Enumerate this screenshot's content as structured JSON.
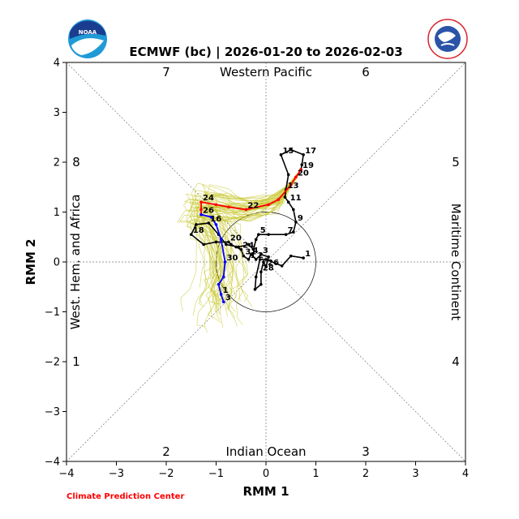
{
  "chart_data": {
    "type": "line",
    "title": "ECMWF (bc) | 2026-01-20 to 2026-02-03",
    "xlabel": "RMM 1",
    "ylabel": "RMM 2",
    "xlim": [
      -4,
      4
    ],
    "ylim": [
      -4,
      4
    ],
    "xticks": [
      "−4",
      "−3",
      "−2",
      "−1",
      "0",
      "1",
      "2",
      "3",
      "4"
    ],
    "yticks": [
      "−4",
      "−3",
      "−2",
      "−1",
      "0",
      "1",
      "2",
      "3",
      "4"
    ],
    "phase_numbers": [
      "1",
      "2",
      "3",
      "4",
      "5",
      "6",
      "7",
      "8"
    ],
    "region_labels": {
      "top": "Western Pacific",
      "bottom": "Indian Ocean",
      "left": "West. Hem. and Africa",
      "right": "Maritime Continent"
    },
    "credit": "Climate Prediction Center",
    "colors": {
      "observed": "#000000",
      "forecast_early": "#ff0000",
      "forecast_late": "#0000ff",
      "ensemble": "#c8c832",
      "credit": "#ff0000"
    },
    "series": [
      {
        "color": "#000000",
        "points": [
          {
            "x": 0.75,
            "y": 0.08,
            "label": "1"
          },
          {
            "x": 0.5,
            "y": 0.12,
            "label": ""
          },
          {
            "x": 0.32,
            "y": -0.08,
            "label": ""
          },
          {
            "x": 0.0,
            "y": 0.05,
            "label": ""
          },
          {
            "x": -0.12,
            "y": 0.05,
            "label": ""
          },
          {
            "x": -0.2,
            "y": -0.3,
            "label": ""
          },
          {
            "x": -0.22,
            "y": -0.55,
            "label": ""
          },
          {
            "x": -0.1,
            "y": -0.45,
            "label": ""
          },
          {
            "x": -0.1,
            "y": -0.2,
            "label": "28"
          },
          {
            "x": -0.05,
            "y": 0.0,
            "label": ""
          },
          {
            "x": 0.0,
            "y": -0.1,
            "label": "26"
          },
          {
            "x": 0.05,
            "y": 0.1,
            "label": ""
          },
          {
            "x": -0.1,
            "y": 0.15,
            "label": "3"
          },
          {
            "x": -0.2,
            "y": 0.05,
            "label": "2"
          },
          {
            "x": -0.3,
            "y": 0.15,
            "label": "4"
          },
          {
            "x": -0.35,
            "y": 0.05,
            "label": "1"
          },
          {
            "x": -0.45,
            "y": 0.12,
            "label": "31"
          },
          {
            "x": -0.5,
            "y": 0.25,
            "label": "24"
          },
          {
            "x": -0.6,
            "y": 0.3,
            "label": ""
          },
          {
            "x": -0.7,
            "y": 0.35,
            "label": ""
          },
          {
            "x": -0.75,
            "y": 0.4,
            "label": "20"
          },
          {
            "x": -1.0,
            "y": 0.4,
            "label": ""
          },
          {
            "x": -1.25,
            "y": 0.35,
            "label": ""
          },
          {
            "x": -1.5,
            "y": 0.55,
            "label": "18"
          },
          {
            "x": -1.4,
            "y": 0.75,
            "label": ""
          },
          {
            "x": -1.15,
            "y": 0.78,
            "label": "16"
          },
          {
            "x": -0.95,
            "y": 0.55,
            "label": ""
          },
          {
            "x": -0.8,
            "y": 0.35,
            "label": ""
          },
          {
            "x": -0.55,
            "y": 0.3,
            "label": ""
          },
          {
            "x": -0.35,
            "y": 0.35,
            "label": ""
          },
          {
            "x": -0.25,
            "y": 0.25,
            "label": ""
          },
          {
            "x": -0.2,
            "y": 0.45,
            "label": ""
          },
          {
            "x": -0.15,
            "y": 0.55,
            "label": "5"
          },
          {
            "x": 0.05,
            "y": 0.55,
            "label": ""
          },
          {
            "x": 0.4,
            "y": 0.55,
            "label": "7"
          },
          {
            "x": 0.55,
            "y": 0.6,
            "label": ""
          },
          {
            "x": 0.6,
            "y": 0.8,
            "label": "9"
          },
          {
            "x": 0.55,
            "y": 1.05,
            "label": ""
          },
          {
            "x": 0.45,
            "y": 1.2,
            "label": "11"
          },
          {
            "x": 0.38,
            "y": 1.3,
            "label": ""
          },
          {
            "x": 0.4,
            "y": 1.45,
            "label": "13"
          },
          {
            "x": 0.45,
            "y": 1.75,
            "label": ""
          },
          {
            "x": 0.3,
            "y": 2.15,
            "label": "15"
          },
          {
            "x": 0.5,
            "y": 2.25,
            "label": ""
          },
          {
            "x": 0.75,
            "y": 2.15,
            "label": "17"
          },
          {
            "x": 0.72,
            "y": 1.95,
            "label": ""
          },
          {
            "x": 0.7,
            "y": 1.85,
            "label": "19"
          }
        ]
      },
      {
        "color": "#ff0000",
        "points": [
          {
            "x": 0.7,
            "y": 1.85,
            "label": ""
          },
          {
            "x": 0.6,
            "y": 1.7,
            "label": "20"
          },
          {
            "x": 0.5,
            "y": 1.55,
            "label": ""
          },
          {
            "x": 0.25,
            "y": 1.25,
            "label": ""
          },
          {
            "x": 0.05,
            "y": 1.15,
            "label": ""
          },
          {
            "x": -0.4,
            "y": 1.05,
            "label": "22"
          },
          {
            "x": -0.75,
            "y": 1.1,
            "label": ""
          },
          {
            "x": -1.0,
            "y": 1.15,
            "label": ""
          },
          {
            "x": -1.3,
            "y": 1.2,
            "label": "24"
          },
          {
            "x": -1.3,
            "y": 1.05,
            "label": ""
          },
          {
            "x": -1.3,
            "y": 0.95,
            "label": "26"
          }
        ]
      },
      {
        "color": "#0000ff",
        "points": [
          {
            "x": -1.3,
            "y": 0.95,
            "label": ""
          },
          {
            "x": -1.1,
            "y": 0.9,
            "label": ""
          },
          {
            "x": -1.0,
            "y": 0.75,
            "label": ""
          },
          {
            "x": -0.9,
            "y": 0.45,
            "label": ""
          },
          {
            "x": -0.82,
            "y": 0.0,
            "label": "30"
          },
          {
            "x": -0.85,
            "y": -0.3,
            "label": ""
          },
          {
            "x": -0.95,
            "y": -0.45,
            "label": ""
          },
          {
            "x": -0.9,
            "y": -0.65,
            "label": "1"
          },
          {
            "x": -0.85,
            "y": -0.8,
            "label": "3"
          }
        ]
      }
    ]
  }
}
